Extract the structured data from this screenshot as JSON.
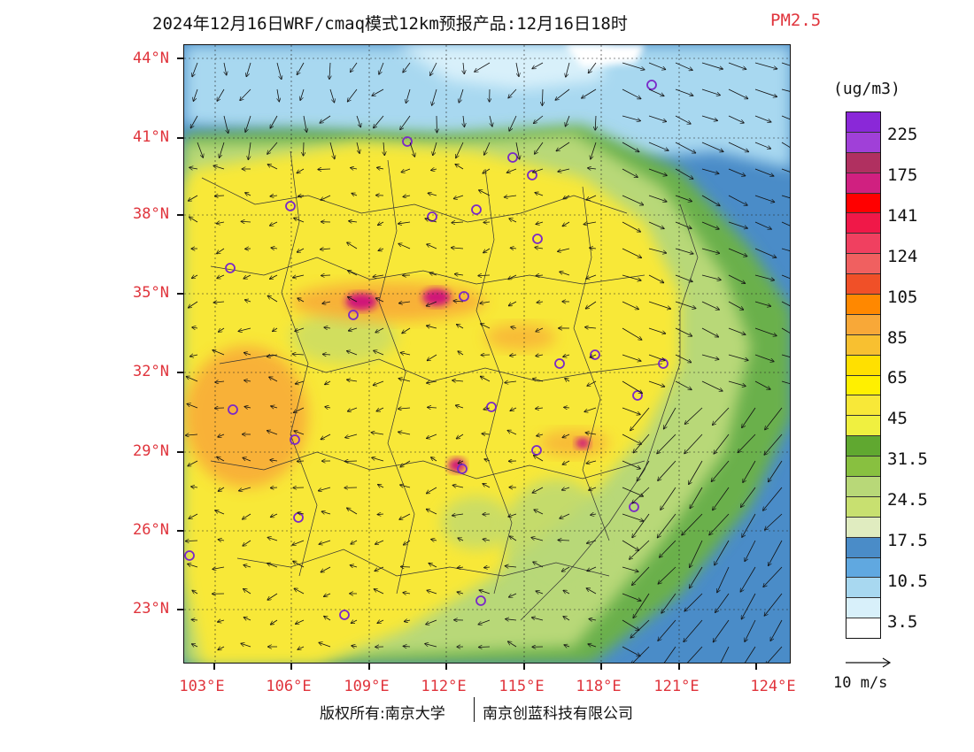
{
  "title": {
    "main": "2024年12月16日WRF/cmaq模式12km预报产品:12月16日18时",
    "product": "PM2.5"
  },
  "map": {
    "lat_labels": [
      "44°N",
      "41°N",
      "38°N",
      "35°N",
      "32°N",
      "29°N",
      "26°N",
      "23°N"
    ],
    "lon_labels": [
      "103°E",
      "106°E",
      "109°E",
      "112°E",
      "115°E",
      "118°E",
      "121°E",
      "124°E"
    ],
    "colors": {
      "sea_blue": "#4a8cc8",
      "light_blue": "#a8d8f0",
      "pale_blue": "#d8f0fa",
      "green": "#6ab04c",
      "light_green": "#b8d878",
      "yellow": "#f8e838",
      "orange": "#f8a838",
      "magenta": "#d01878"
    }
  },
  "legend": {
    "unit": "(ug/m3)",
    "colors_top_to_bottom": [
      "#8a28d8",
      "#a040d8",
      "#b03060",
      "#d02080",
      "#ff0000",
      "#f01848",
      "#f04060",
      "#f06060",
      "#f05028",
      "#ff8800",
      "#f8a838",
      "#f8c030",
      "#ffe000",
      "#fff000",
      "#f8e838",
      "#f0f040",
      "#60a830",
      "#88c040",
      "#b8d878",
      "#c8e070",
      "#e0ecc0",
      "#4a8cc8",
      "#60a8e0",
      "#a8d8f0",
      "#d8f0fa",
      "#ffffff"
    ],
    "labels": [
      "225",
      "175",
      "141",
      "124",
      "105",
      "85",
      "65",
      "45",
      "31.5",
      "24.5",
      "17.5",
      "10.5",
      "3.5"
    ],
    "wind_reference": "10 m/s"
  },
  "footer": {
    "copyright": "版权所有:南京大学",
    "company": "南京创蓝科技有限公司"
  }
}
